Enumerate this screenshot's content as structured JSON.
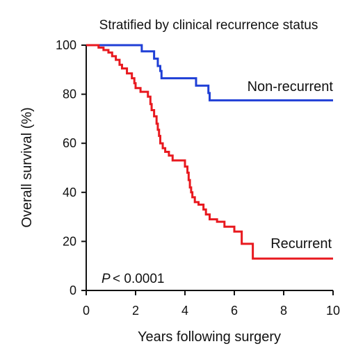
{
  "chart_data": {
    "type": "line",
    "title": "Stratified by clinical recurrence status",
    "xlabel": "Years following surgery",
    "ylabel": "Overall survival (%)",
    "xlim": [
      0,
      10
    ],
    "ylim": [
      0,
      100
    ],
    "x_ticks": [
      "0",
      "2",
      "4",
      "6",
      "8",
      "10"
    ],
    "y_ticks": [
      "0",
      "20",
      "40",
      "60",
      "80",
      "100"
    ],
    "grid": false,
    "legend": "none",
    "annotation": {
      "p_symbol": "P",
      "p_value": "< 0.0001"
    },
    "series": [
      {
        "name": "Non-recurrent",
        "color": "#1f3fd6",
        "step": true,
        "x": [
          0,
          2.25,
          2.75,
          2.9,
          3.0,
          3.05,
          4.45,
          4.95,
          5.0,
          10
        ],
        "y": [
          100,
          97.5,
          94.5,
          91.5,
          89.5,
          86.5,
          83.5,
          80.5,
          77.5,
          77.5
        ]
      },
      {
        "name": "Recurrent",
        "color": "#e8191f",
        "step": true,
        "x": [
          0,
          0.5,
          0.7,
          0.9,
          1.05,
          1.2,
          1.35,
          1.45,
          1.65,
          1.85,
          1.95,
          2.0,
          2.2,
          2.5,
          2.6,
          2.65,
          2.75,
          2.85,
          2.9,
          2.95,
          3.0,
          3.1,
          3.2,
          3.35,
          3.5,
          3.8,
          4.0,
          4.1,
          4.15,
          4.2,
          4.25,
          4.3,
          4.4,
          4.55,
          4.75,
          4.85,
          5.0,
          5.3,
          5.6,
          6.0,
          6.3,
          6.75,
          10
        ],
        "y": [
          100,
          99,
          98,
          97,
          95.5,
          94,
          92,
          90.5,
          88.5,
          86.5,
          84.5,
          82.5,
          81,
          79,
          76,
          73.5,
          71,
          68,
          65.5,
          63,
          60,
          58,
          56.5,
          55,
          53,
          53,
          50.5,
          48,
          45,
          42,
          40,
          38,
          36,
          35,
          33,
          31,
          29,
          28,
          26,
          24,
          19,
          13,
          13
        ]
      }
    ]
  }
}
